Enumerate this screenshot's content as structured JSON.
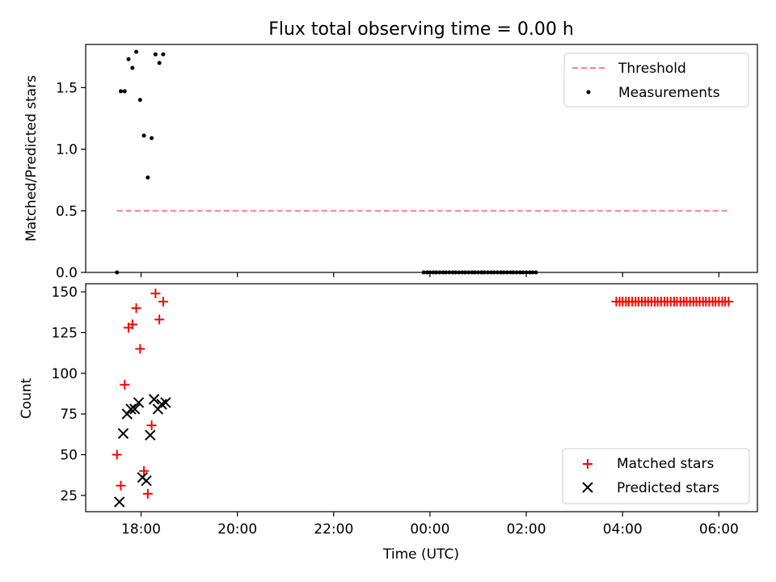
{
  "title": "Flux total observing time = 0.00 h",
  "colors": {
    "threshold": "#ff7f7f",
    "matched": "#ff0000",
    "predicted": "#000000",
    "measurement": "#000000"
  },
  "chart_data": [
    {
      "type": "scatter",
      "panel": "top",
      "ylabel": "Matched/Predicted stars",
      "ylim": [
        0,
        1.85
      ],
      "yticks": [
        0.0,
        0.5,
        1.0,
        1.5
      ],
      "ytick_labels": [
        "0.0",
        "0.5",
        "1.0",
        "1.5"
      ],
      "legend_position": "top-right",
      "threshold": {
        "name": "Threshold",
        "value": 0.5,
        "x_start": 17.5,
        "x_end": 30.2
      },
      "series": [
        {
          "name": "Measurements",
          "x": [
            17.5,
            17.58,
            17.66,
            17.74,
            17.82,
            17.9,
            17.98,
            18.06,
            18.14,
            18.22,
            18.3,
            18.38,
            18.46,
            23.87,
            23.94,
            24.0,
            24.07,
            24.13,
            24.2,
            24.27,
            24.33,
            24.4,
            24.47,
            24.53,
            24.6,
            24.67,
            24.73,
            24.8,
            24.87,
            24.93,
            25.0,
            25.07,
            25.13,
            25.2,
            25.27,
            25.33,
            25.4,
            25.47,
            25.53,
            25.6,
            25.67,
            25.73,
            25.8,
            25.87,
            25.93,
            26.0,
            26.07,
            26.13,
            26.2
          ],
          "y": [
            0.0,
            1.47,
            1.47,
            1.73,
            1.66,
            1.79,
            1.4,
            1.11,
            0.77,
            1.09,
            1.77,
            1.7,
            1.77,
            0,
            0,
            0,
            0,
            0,
            0,
            0,
            0,
            0,
            0,
            0,
            0,
            0,
            0,
            0,
            0,
            0,
            0,
            0,
            0,
            0,
            0,
            0,
            0,
            0,
            0,
            0,
            0,
            0,
            0,
            0,
            0,
            0,
            0,
            0,
            0
          ]
        }
      ]
    },
    {
      "type": "scatter",
      "panel": "bottom",
      "xlabel": "Time (UTC)",
      "ylabel": "Count",
      "xlim": [
        16.85,
        30.8
      ],
      "ylim": [
        15,
        155
      ],
      "xticks": [
        18,
        20,
        22,
        24,
        26,
        28,
        30
      ],
      "xtick_labels": [
        "18:00",
        "20:00",
        "22:00",
        "00:00",
        "02:00",
        "04:00",
        "06:00"
      ],
      "yticks": [
        25,
        50,
        75,
        100,
        125,
        150
      ],
      "ytick_labels": [
        "25",
        "50",
        "75",
        "100",
        "125",
        "150"
      ],
      "legend_position": "bottom-right",
      "series": [
        {
          "name": "Matched stars",
          "marker": "plus",
          "x": [
            17.5,
            17.58,
            17.66,
            17.74,
            17.82,
            17.9,
            17.98,
            18.06,
            18.14,
            18.22,
            18.3,
            18.38,
            18.46,
            27.87,
            27.94,
            28.0,
            28.07,
            28.13,
            28.2,
            28.27,
            28.33,
            28.4,
            28.47,
            28.53,
            28.6,
            28.67,
            28.73,
            28.8,
            28.87,
            28.93,
            29.0,
            29.07,
            29.13,
            29.2,
            29.27,
            29.33,
            29.4,
            29.47,
            29.53,
            29.6,
            29.67,
            29.73,
            29.8,
            29.87,
            29.93,
            30.0,
            30.07,
            30.13,
            30.2
          ],
          "y": [
            50,
            31,
            93,
            128,
            130,
            140,
            115,
            40,
            26,
            68,
            149,
            133,
            144,
            144,
            144,
            144,
            144,
            144,
            144,
            144,
            144,
            144,
            144,
            144,
            144,
            144,
            144,
            144,
            144,
            144,
            144,
            144,
            144,
            144,
            144,
            144,
            144,
            144,
            144,
            144,
            144,
            144,
            144,
            144,
            144,
            144,
            144,
            144,
            144
          ]
        },
        {
          "name": "Predicted stars",
          "marker": "x",
          "x": [
            17.55,
            17.63,
            17.71,
            17.79,
            17.87,
            17.95,
            18.03,
            18.11,
            18.19,
            18.27,
            18.35,
            18.43,
            18.51
          ],
          "y": [
            21,
            63,
            75,
            78,
            78,
            82,
            36,
            34,
            62,
            84,
            78,
            81,
            82
          ]
        }
      ]
    }
  ]
}
